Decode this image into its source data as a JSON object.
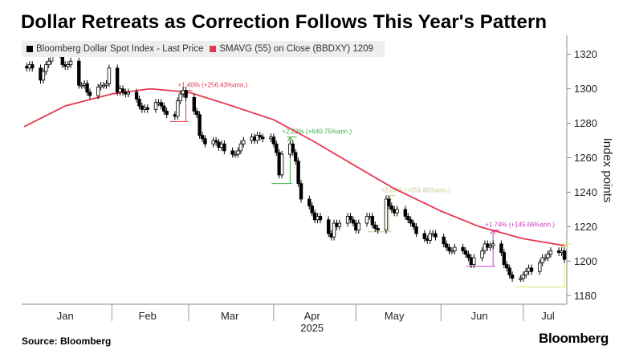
{
  "title": "Dollar Retreats as Correction Follows This Year's Pattern",
  "source": "Source: Bloomberg",
  "brand": "Bloomberg",
  "colors": {
    "up": "#ffffff",
    "down": "#000000",
    "sma": "#e8364f",
    "annotation_red": "#e8364f",
    "annotation_green": "#3cb043",
    "annotation_olive": "#c8c890",
    "annotation_purple": "#c040c0",
    "annotation_yellow": "#e8e070"
  },
  "chart_data": {
    "type": "candlestick",
    "legend": [
      {
        "label": "Bloomberg Dollar Spot Index - Last Price",
        "color": "#000000"
      },
      {
        "label": "SMAVG (55)  on Close (BBDXY) 1209",
        "color": "#e8364f"
      }
    ],
    "ylabel": "Index points",
    "ylim": [
      1175,
      1331
    ],
    "yticks": [
      1180,
      1200,
      1220,
      1240,
      1260,
      1280,
      1300,
      1320
    ],
    "x_start": "2024-12-31",
    "x_end": "2025-07-16",
    "month_ticks": [
      {
        "label": "Jan",
        "date": "2025-01-15"
      },
      {
        "label": "Feb",
        "date": "2025-02-14"
      },
      {
        "label": "Mar",
        "date": "2025-03-16"
      },
      {
        "label": "Apr",
        "date": "2025-04-15"
      },
      {
        "label": "May",
        "date": "2025-05-15"
      },
      {
        "label": "Jun",
        "date": "2025-06-15"
      },
      {
        "label": "Jul",
        "date": "2025-07-10"
      }
    ],
    "month_separators": [
      "2025-02-01",
      "2025-03-01",
      "2025-04-01",
      "2025-05-01",
      "2025-06-01",
      "2025-07-01"
    ],
    "year_label": "2025",
    "closes": [
      [
        "2025-01-01",
        1312
      ],
      [
        "2025-01-02",
        1314
      ],
      [
        "2025-01-03",
        1312
      ],
      [
        "2025-01-06",
        1305
      ],
      [
        "2025-01-07",
        1310
      ],
      [
        "2025-01-08",
        1314
      ],
      [
        "2025-01-09",
        1316
      ],
      [
        "2025-01-10",
        1322
      ],
      [
        "2025-01-13",
        1320
      ],
      [
        "2025-01-14",
        1314
      ],
      [
        "2025-01-15",
        1313
      ],
      [
        "2025-01-16",
        1314
      ],
      [
        "2025-01-17",
        1316
      ],
      [
        "2025-01-20",
        1302
      ],
      [
        "2025-01-21",
        1302
      ],
      [
        "2025-01-22",
        1303
      ],
      [
        "2025-01-23",
        1298
      ],
      [
        "2025-01-24",
        1296
      ],
      [
        "2025-01-27",
        1301
      ],
      [
        "2025-01-28",
        1302
      ],
      [
        "2025-01-29",
        1302
      ],
      [
        "2025-01-30",
        1303
      ],
      [
        "2025-01-31",
        1312
      ],
      [
        "2025-02-03",
        1298
      ],
      [
        "2025-02-04",
        1300
      ],
      [
        "2025-02-05",
        1298
      ],
      [
        "2025-02-06",
        1297
      ],
      [
        "2025-02-07",
        1298
      ],
      [
        "2025-02-10",
        1294
      ],
      [
        "2025-02-11",
        1290
      ],
      [
        "2025-02-12",
        1288
      ],
      [
        "2025-02-13",
        1289
      ],
      [
        "2025-02-14",
        1288
      ],
      [
        "2025-02-17",
        1292
      ],
      [
        "2025-02-18",
        1292
      ],
      [
        "2025-02-19",
        1290
      ],
      [
        "2025-02-20",
        1287
      ],
      [
        "2025-02-21",
        1285
      ],
      [
        "2025-02-24",
        1284
      ],
      [
        "2025-02-25",
        1293
      ],
      [
        "2025-02-26",
        1297
      ],
      [
        "2025-02-27",
        1299
      ],
      [
        "2025-02-28",
        1295
      ],
      [
        "2025-03-03",
        1287
      ],
      [
        "2025-03-04",
        1285
      ],
      [
        "2025-03-05",
        1273
      ],
      [
        "2025-03-06",
        1271
      ],
      [
        "2025-03-07",
        1268
      ],
      [
        "2025-03-10",
        1270
      ],
      [
        "2025-03-11",
        1269
      ],
      [
        "2025-03-12",
        1266
      ],
      [
        "2025-03-13",
        1268
      ],
      [
        "2025-03-14",
        1264
      ],
      [
        "2025-03-17",
        1262
      ],
      [
        "2025-03-18",
        1262
      ],
      [
        "2025-03-19",
        1264
      ],
      [
        "2025-03-20",
        1268
      ],
      [
        "2025-03-21",
        1270
      ],
      [
        "2025-03-24",
        1272
      ],
      [
        "2025-03-25",
        1270
      ],
      [
        "2025-03-26",
        1273
      ],
      [
        "2025-03-27",
        1272
      ],
      [
        "2025-03-28",
        1271
      ],
      [
        "2025-03-31",
        1272
      ],
      [
        "2025-04-01",
        1268
      ],
      [
        "2025-04-02",
        1263
      ],
      [
        "2025-04-03",
        1250
      ],
      [
        "2025-04-04",
        1262
      ],
      [
        "2025-04-07",
        1268
      ],
      [
        "2025-04-08",
        1263
      ],
      [
        "2025-04-09",
        1258
      ],
      [
        "2025-04-10",
        1245
      ],
      [
        "2025-04-11",
        1236
      ],
      [
        "2025-04-14",
        1232
      ],
      [
        "2025-04-15",
        1228
      ],
      [
        "2025-04-16",
        1224
      ],
      [
        "2025-04-17",
        1226
      ],
      [
        "2025-04-18",
        1224
      ],
      [
        "2025-04-21",
        1216
      ],
      [
        "2025-04-22",
        1214
      ],
      [
        "2025-04-23",
        1222
      ],
      [
        "2025-04-24",
        1220
      ],
      [
        "2025-04-25",
        1222
      ],
      [
        "2025-04-28",
        1226
      ],
      [
        "2025-04-29",
        1224
      ],
      [
        "2025-04-30",
        1222
      ],
      [
        "2025-05-01",
        1218
      ],
      [
        "2025-05-02",
        1222
      ],
      [
        "2025-05-05",
        1226
      ],
      [
        "2025-05-06",
        1226
      ],
      [
        "2025-05-07",
        1221
      ],
      [
        "2025-05-08",
        1219
      ],
      [
        "2025-05-09",
        1218
      ],
      [
        "2025-05-12",
        1236
      ],
      [
        "2025-05-13",
        1232
      ],
      [
        "2025-05-14",
        1230
      ],
      [
        "2025-05-15",
        1228
      ],
      [
        "2025-05-16",
        1230
      ],
      [
        "2025-05-19",
        1226
      ],
      [
        "2025-05-20",
        1224
      ],
      [
        "2025-05-21",
        1222
      ],
      [
        "2025-05-22",
        1220
      ],
      [
        "2025-05-23",
        1216
      ],
      [
        "2025-05-26",
        1213
      ],
      [
        "2025-05-27",
        1212
      ],
      [
        "2025-05-28",
        1216
      ],
      [
        "2025-05-29",
        1216
      ],
      [
        "2025-05-30",
        1214
      ],
      [
        "2025-06-02",
        1210
      ],
      [
        "2025-06-03",
        1208
      ],
      [
        "2025-06-04",
        1206
      ],
      [
        "2025-06-05",
        1206
      ],
      [
        "2025-06-06",
        1208
      ],
      [
        "2025-06-09",
        1206
      ],
      [
        "2025-06-10",
        1204
      ],
      [
        "2025-06-11",
        1202
      ],
      [
        "2025-06-12",
        1198
      ],
      [
        "2025-06-13",
        1202
      ],
      [
        "2025-06-16",
        1206
      ],
      [
        "2025-06-17",
        1210
      ],
      [
        "2025-06-18",
        1208
      ],
      [
        "2025-06-19",
        1209
      ],
      [
        "2025-06-20",
        1210
      ],
      [
        "2025-06-23",
        1205
      ],
      [
        "2025-06-24",
        1198
      ],
      [
        "2025-06-25",
        1196
      ],
      [
        "2025-06-26",
        1192
      ],
      [
        "2025-06-27",
        1190
      ],
      [
        "2025-06-30",
        1190
      ],
      [
        "2025-07-01",
        1192
      ],
      [
        "2025-07-02",
        1194
      ],
      [
        "2025-07-03",
        1196
      ],
      [
        "2025-07-04",
        1194
      ],
      [
        "2025-07-07",
        1199
      ],
      [
        "2025-07-08",
        1202
      ],
      [
        "2025-07-09",
        1202
      ],
      [
        "2025-07-10",
        1204
      ],
      [
        "2025-07-11",
        1206
      ],
      [
        "2025-07-14",
        1205
      ],
      [
        "2025-07-15",
        1206
      ],
      [
        "2025-07-16",
        1201
      ]
    ],
    "sma": [
      [
        "2024-12-31",
        1278
      ],
      [
        "2025-01-15",
        1290
      ],
      [
        "2025-02-01",
        1297
      ],
      [
        "2025-02-15",
        1300
      ],
      [
        "2025-03-01",
        1298
      ],
      [
        "2025-03-15",
        1291
      ],
      [
        "2025-04-01",
        1282
      ],
      [
        "2025-04-15",
        1270
      ],
      [
        "2025-05-01",
        1255
      ],
      [
        "2025-05-15",
        1242
      ],
      [
        "2025-06-01",
        1229
      ],
      [
        "2025-06-15",
        1220
      ],
      [
        "2025-07-01",
        1213
      ],
      [
        "2025-07-16",
        1209
      ]
    ],
    "annotations": [
      {
        "text": "+1.40% (+256.43%ann.)",
        "color": "#e8364f",
        "from": "2025-02-24",
        "to": "2025-02-28",
        "low": 1281,
        "high": 1299
      },
      {
        "text": "+2.23% (+640.75%ann.)",
        "color": "#3cb043",
        "from": "2025-04-02",
        "to": "2025-04-07",
        "low": 1245,
        "high": 1272
      },
      {
        "text": "+2.09% (+251.60%ann.)",
        "color": "#c8c890",
        "from": "2025-05-07",
        "to": "2025-05-13",
        "low": 1217,
        "high": 1238
      },
      {
        "text": "+1.74% (+145.66%ann.)",
        "color": "#c040c0",
        "from": "2025-06-12",
        "to": "2025-06-20",
        "low": 1197,
        "high": 1218
      },
      {
        "text": "",
        "color": "#e8e070",
        "from": "2025-06-30",
        "to": "2025-07-16",
        "low": 1185,
        "high": 1210
      }
    ]
  }
}
